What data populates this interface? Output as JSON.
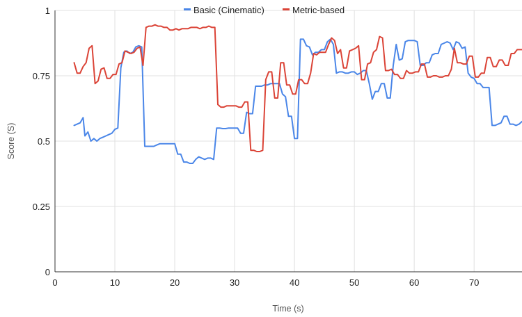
{
  "chart_data": {
    "type": "line",
    "title": "",
    "xlabel": "Time (s)",
    "ylabel": "Score (S)",
    "xlim": [
      0,
      78
    ],
    "ylim": [
      0,
      1
    ],
    "x_ticks": [
      0,
      10,
      20,
      30,
      40,
      50,
      60,
      70
    ],
    "y_ticks": [
      0,
      0.25,
      0.5,
      0.75,
      1
    ],
    "y_tick_labels": [
      "0",
      "0.25",
      "0.5",
      "0.75",
      "1"
    ],
    "grid": true,
    "legend_position": "top",
    "series": [
      {
        "name": "Basic (Cinematic)",
        "color": "#4a86e8",
        "points": [
          [
            3.2,
            0.56
          ],
          [
            3.7,
            0.565
          ],
          [
            4.2,
            0.57
          ],
          [
            4.7,
            0.59
          ],
          [
            5.0,
            0.52
          ],
          [
            5.5,
            0.535
          ],
          [
            6.0,
            0.5
          ],
          [
            6.5,
            0.51
          ],
          [
            7.0,
            0.5
          ],
          [
            7.5,
            0.51
          ],
          [
            8.0,
            0.515
          ],
          [
            8.5,
            0.52
          ],
          [
            9.0,
            0.525
          ],
          [
            9.5,
            0.53
          ],
          [
            10.0,
            0.545
          ],
          [
            10.5,
            0.55
          ],
          [
            11.0,
            0.78
          ],
          [
            11.5,
            0.84
          ],
          [
            12.0,
            0.845
          ],
          [
            12.5,
            0.835
          ],
          [
            13.0,
            0.84
          ],
          [
            13.5,
            0.86
          ],
          [
            14.0,
            0.865
          ],
          [
            14.5,
            0.86
          ],
          [
            15.0,
            0.48
          ],
          [
            15.5,
            0.48
          ],
          [
            16.0,
            0.48
          ],
          [
            16.5,
            0.48
          ],
          [
            17.0,
            0.485
          ],
          [
            17.5,
            0.49
          ],
          [
            18.0,
            0.49
          ],
          [
            18.5,
            0.49
          ],
          [
            19.0,
            0.49
          ],
          [
            19.5,
            0.49
          ],
          [
            20.0,
            0.49
          ],
          [
            20.5,
            0.45
          ],
          [
            21.0,
            0.45
          ],
          [
            21.5,
            0.42
          ],
          [
            22.0,
            0.42
          ],
          [
            22.5,
            0.415
          ],
          [
            23.0,
            0.415
          ],
          [
            23.5,
            0.43
          ],
          [
            24.0,
            0.44
          ],
          [
            24.5,
            0.435
          ],
          [
            25.0,
            0.43
          ],
          [
            25.5,
            0.435
          ],
          [
            26.0,
            0.435
          ],
          [
            26.5,
            0.43
          ],
          [
            27.0,
            0.55
          ],
          [
            27.5,
            0.55
          ],
          [
            28.0,
            0.548
          ],
          [
            28.5,
            0.548
          ],
          [
            29.0,
            0.55
          ],
          [
            29.5,
            0.55
          ],
          [
            30.0,
            0.55
          ],
          [
            30.5,
            0.55
          ],
          [
            31.0,
            0.53
          ],
          [
            31.5,
            0.53
          ],
          [
            32.0,
            0.61
          ],
          [
            32.5,
            0.605
          ],
          [
            33.0,
            0.605
          ],
          [
            33.5,
            0.71
          ],
          [
            34.0,
            0.71
          ],
          [
            34.5,
            0.71
          ],
          [
            35.0,
            0.715
          ],
          [
            35.5,
            0.715
          ],
          [
            36.0,
            0.72
          ],
          [
            36.5,
            0.72
          ],
          [
            37.0,
            0.72
          ],
          [
            37.5,
            0.72
          ],
          [
            38.0,
            0.68
          ],
          [
            38.5,
            0.67
          ],
          [
            39.0,
            0.595
          ],
          [
            39.5,
            0.595
          ],
          [
            40.0,
            0.51
          ],
          [
            40.5,
            0.51
          ],
          [
            41.0,
            0.89
          ],
          [
            41.5,
            0.89
          ],
          [
            42.0,
            0.865
          ],
          [
            42.5,
            0.86
          ],
          [
            43.0,
            0.83
          ],
          [
            43.5,
            0.84
          ],
          [
            44.0,
            0.84
          ],
          [
            44.5,
            0.85
          ],
          [
            45.0,
            0.85
          ],
          [
            45.5,
            0.88
          ],
          [
            46.0,
            0.89
          ],
          [
            46.5,
            0.87
          ],
          [
            47.0,
            0.76
          ],
          [
            47.5,
            0.765
          ],
          [
            48.0,
            0.765
          ],
          [
            48.5,
            0.76
          ],
          [
            49.0,
            0.76
          ],
          [
            49.5,
            0.765
          ],
          [
            50.0,
            0.765
          ],
          [
            50.5,
            0.755
          ],
          [
            51.0,
            0.76
          ],
          [
            51.5,
            0.77
          ],
          [
            52.0,
            0.77
          ],
          [
            52.5,
            0.72
          ],
          [
            53.0,
            0.66
          ],
          [
            53.5,
            0.69
          ],
          [
            54.0,
            0.69
          ],
          [
            54.5,
            0.72
          ],
          [
            55.0,
            0.72
          ],
          [
            55.5,
            0.665
          ],
          [
            56.0,
            0.665
          ],
          [
            56.5,
            0.79
          ],
          [
            57.0,
            0.87
          ],
          [
            57.5,
            0.81
          ],
          [
            58.0,
            0.815
          ],
          [
            58.5,
            0.88
          ],
          [
            59.0,
            0.885
          ],
          [
            59.5,
            0.885
          ],
          [
            60.0,
            0.885
          ],
          [
            60.5,
            0.88
          ],
          [
            61.0,
            0.79
          ],
          [
            61.5,
            0.79
          ],
          [
            62.0,
            0.8
          ],
          [
            62.5,
            0.8
          ],
          [
            63.0,
            0.83
          ],
          [
            63.5,
            0.835
          ],
          [
            64.0,
            0.835
          ],
          [
            64.5,
            0.87
          ],
          [
            65.0,
            0.875
          ],
          [
            65.5,
            0.88
          ],
          [
            66.0,
            0.875
          ],
          [
            66.5,
            0.85
          ],
          [
            67.0,
            0.88
          ],
          [
            67.5,
            0.875
          ],
          [
            68.0,
            0.855
          ],
          [
            68.5,
            0.86
          ],
          [
            69.0,
            0.76
          ],
          [
            69.5,
            0.745
          ],
          [
            70.0,
            0.74
          ],
          [
            70.5,
            0.72
          ],
          [
            71.0,
            0.72
          ],
          [
            71.5,
            0.705
          ],
          [
            72.0,
            0.705
          ],
          [
            72.5,
            0.705
          ],
          [
            73.0,
            0.56
          ],
          [
            73.5,
            0.56
          ],
          [
            74.0,
            0.565
          ],
          [
            74.5,
            0.57
          ],
          [
            75.0,
            0.595
          ],
          [
            75.5,
            0.595
          ],
          [
            76.0,
            0.565
          ],
          [
            76.5,
            0.565
          ],
          [
            77.0,
            0.56
          ],
          [
            77.5,
            0.565
          ],
          [
            78.0,
            0.575
          ]
        ]
      },
      {
        "name": "Metric-based",
        "color": "#db4437",
        "points": [
          [
            3.2,
            0.8
          ],
          [
            3.7,
            0.76
          ],
          [
            4.2,
            0.76
          ],
          [
            4.7,
            0.785
          ],
          [
            5.2,
            0.8
          ],
          [
            5.7,
            0.855
          ],
          [
            6.2,
            0.865
          ],
          [
            6.7,
            0.72
          ],
          [
            7.2,
            0.73
          ],
          [
            7.7,
            0.775
          ],
          [
            8.2,
            0.78
          ],
          [
            8.7,
            0.74
          ],
          [
            9.2,
            0.74
          ],
          [
            9.7,
            0.755
          ],
          [
            10.2,
            0.755
          ],
          [
            10.7,
            0.795
          ],
          [
            11.2,
            0.8
          ],
          [
            11.7,
            0.845
          ],
          [
            12.2,
            0.84
          ],
          [
            12.7,
            0.835
          ],
          [
            13.2,
            0.84
          ],
          [
            13.7,
            0.855
          ],
          [
            14.2,
            0.86
          ],
          [
            14.7,
            0.79
          ],
          [
            15.2,
            0.935
          ],
          [
            15.7,
            0.94
          ],
          [
            16.2,
            0.94
          ],
          [
            16.7,
            0.945
          ],
          [
            17.2,
            0.94
          ],
          [
            17.7,
            0.94
          ],
          [
            18.2,
            0.935
          ],
          [
            18.7,
            0.935
          ],
          [
            19.2,
            0.925
          ],
          [
            19.7,
            0.925
          ],
          [
            20.2,
            0.93
          ],
          [
            20.7,
            0.925
          ],
          [
            21.2,
            0.93
          ],
          [
            21.7,
            0.93
          ],
          [
            22.2,
            0.93
          ],
          [
            22.7,
            0.935
          ],
          [
            23.2,
            0.935
          ],
          [
            23.7,
            0.935
          ],
          [
            24.2,
            0.93
          ],
          [
            24.7,
            0.935
          ],
          [
            25.2,
            0.935
          ],
          [
            25.7,
            0.94
          ],
          [
            26.2,
            0.935
          ],
          [
            26.7,
            0.935
          ],
          [
            27.2,
            0.64
          ],
          [
            27.7,
            0.63
          ],
          [
            28.2,
            0.63
          ],
          [
            28.7,
            0.635
          ],
          [
            29.2,
            0.635
          ],
          [
            29.7,
            0.635
          ],
          [
            30.2,
            0.635
          ],
          [
            30.7,
            0.63
          ],
          [
            31.2,
            0.63
          ],
          [
            31.7,
            0.65
          ],
          [
            32.2,
            0.65
          ],
          [
            32.7,
            0.465
          ],
          [
            33.2,
            0.465
          ],
          [
            33.7,
            0.46
          ],
          [
            34.2,
            0.46
          ],
          [
            34.7,
            0.465
          ],
          [
            35.2,
            0.735
          ],
          [
            35.7,
            0.765
          ],
          [
            36.2,
            0.765
          ],
          [
            36.7,
            0.665
          ],
          [
            37.2,
            0.665
          ],
          [
            37.7,
            0.8
          ],
          [
            38.2,
            0.8
          ],
          [
            38.7,
            0.715
          ],
          [
            39.2,
            0.715
          ],
          [
            39.7,
            0.68
          ],
          [
            40.2,
            0.68
          ],
          [
            40.7,
            0.735
          ],
          [
            41.2,
            0.735
          ],
          [
            41.7,
            0.72
          ],
          [
            42.2,
            0.72
          ],
          [
            42.7,
            0.76
          ],
          [
            43.2,
            0.835
          ],
          [
            43.7,
            0.83
          ],
          [
            44.2,
            0.84
          ],
          [
            44.7,
            0.84
          ],
          [
            45.2,
            0.84
          ],
          [
            45.7,
            0.87
          ],
          [
            46.2,
            0.895
          ],
          [
            46.7,
            0.885
          ],
          [
            47.2,
            0.835
          ],
          [
            47.7,
            0.85
          ],
          [
            48.2,
            0.78
          ],
          [
            48.7,
            0.78
          ],
          [
            49.2,
            0.845
          ],
          [
            49.7,
            0.85
          ],
          [
            50.2,
            0.855
          ],
          [
            50.7,
            0.865
          ],
          [
            51.2,
            0.735
          ],
          [
            51.7,
            0.735
          ],
          [
            52.2,
            0.795
          ],
          [
            52.7,
            0.8
          ],
          [
            53.2,
            0.84
          ],
          [
            53.7,
            0.85
          ],
          [
            54.2,
            0.9
          ],
          [
            54.7,
            0.895
          ],
          [
            55.2,
            0.77
          ],
          [
            55.7,
            0.77
          ],
          [
            56.2,
            0.775
          ],
          [
            56.7,
            0.755
          ],
          [
            57.2,
            0.755
          ],
          [
            57.7,
            0.74
          ],
          [
            58.2,
            0.74
          ],
          [
            58.7,
            0.77
          ],
          [
            59.2,
            0.76
          ],
          [
            59.7,
            0.76
          ],
          [
            60.2,
            0.765
          ],
          [
            60.7,
            0.765
          ],
          [
            61.2,
            0.795
          ],
          [
            61.7,
            0.795
          ],
          [
            62.2,
            0.745
          ],
          [
            62.7,
            0.745
          ],
          [
            63.2,
            0.75
          ],
          [
            63.7,
            0.75
          ],
          [
            64.2,
            0.745
          ],
          [
            64.7,
            0.745
          ],
          [
            65.2,
            0.75
          ],
          [
            65.7,
            0.75
          ],
          [
            66.2,
            0.775
          ],
          [
            66.7,
            0.855
          ],
          [
            67.2,
            0.8
          ],
          [
            67.7,
            0.8
          ],
          [
            68.2,
            0.795
          ],
          [
            68.7,
            0.795
          ],
          [
            69.2,
            0.825
          ],
          [
            69.7,
            0.825
          ],
          [
            70.2,
            0.745
          ],
          [
            70.7,
            0.745
          ],
          [
            71.2,
            0.76
          ],
          [
            71.7,
            0.76
          ],
          [
            72.2,
            0.82
          ],
          [
            72.7,
            0.82
          ],
          [
            73.2,
            0.785
          ],
          [
            73.7,
            0.785
          ],
          [
            74.2,
            0.81
          ],
          [
            74.7,
            0.81
          ],
          [
            75.2,
            0.79
          ],
          [
            75.7,
            0.79
          ],
          [
            76.2,
            0.835
          ],
          [
            76.7,
            0.835
          ],
          [
            77.2,
            0.85
          ],
          [
            77.7,
            0.85
          ],
          [
            78.0,
            0.85
          ]
        ]
      }
    ]
  }
}
